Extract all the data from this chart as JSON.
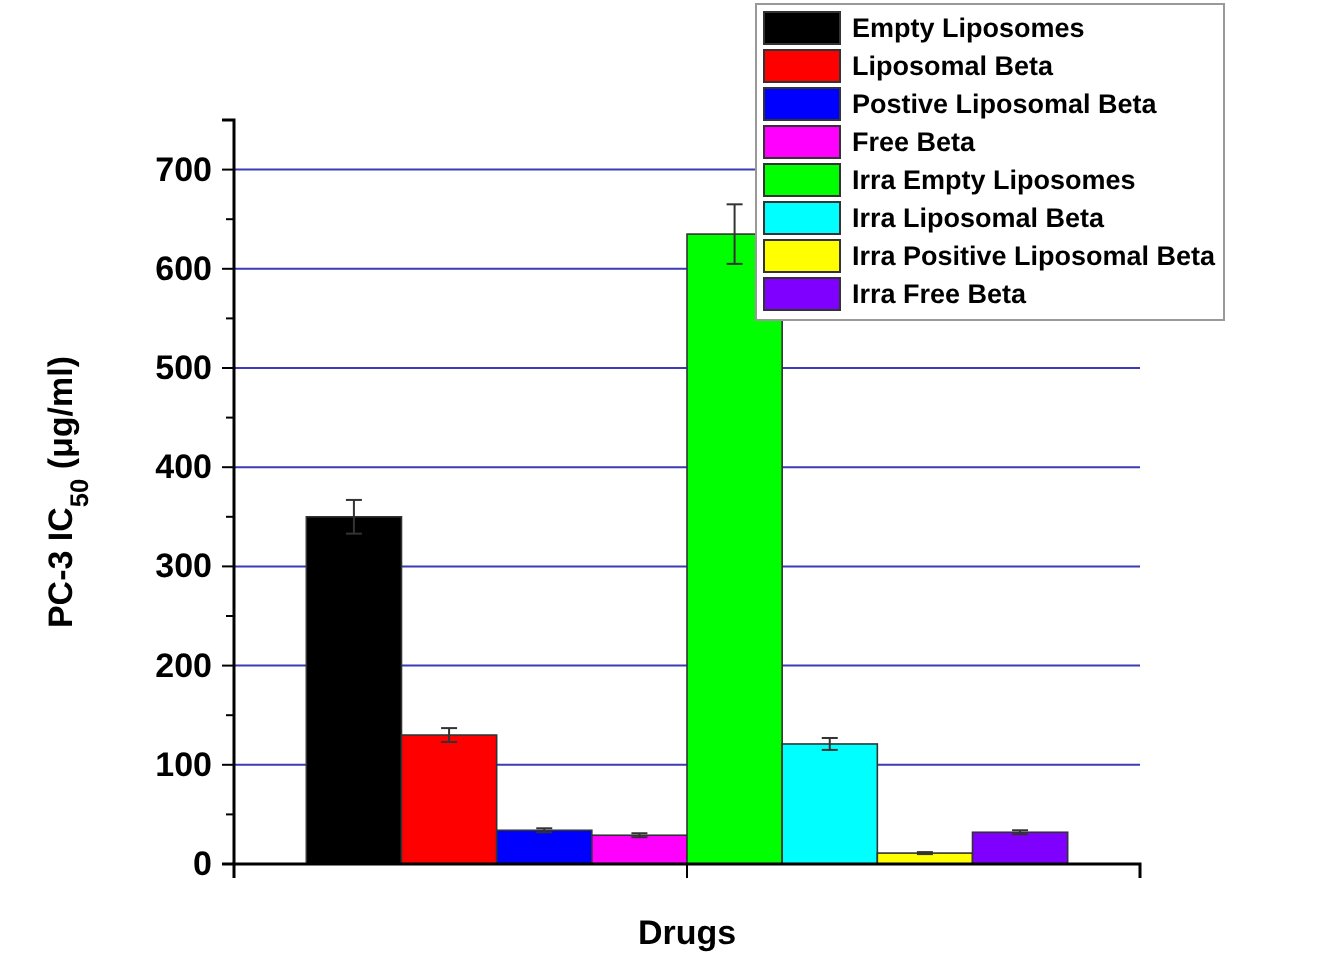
{
  "chart_data": {
    "type": "bar",
    "xlabel": "Drugs",
    "ylabel": "PC-3 IC$_{50}$ (μg/ml)",
    "categories": [
      null
    ],
    "series": [
      {
        "name": "Empty Liposomes",
        "color": "#000000",
        "values": [
          350
        ],
        "errors": [
          17
        ]
      },
      {
        "name": "Liposomal Beta",
        "color": "#ff0000",
        "values": [
          130
        ],
        "errors": [
          7
        ]
      },
      {
        "name": "Postive Liposomal Beta",
        "color": "#0000ff",
        "values": [
          34
        ],
        "errors": [
          2
        ]
      },
      {
        "name": "Free Beta",
        "color": "#ff00ff",
        "values": [
          29
        ],
        "errors": [
          2
        ]
      },
      {
        "name": "Irra Empty Liposomes",
        "color": "#00ff00",
        "values": [
          635
        ],
        "errors": [
          30
        ]
      },
      {
        "name": "Irra Liposomal Beta",
        "color": "#00ffff",
        "values": [
          121
        ],
        "errors": [
          6
        ]
      },
      {
        "name": "Irra Positive Liposomal Beta",
        "color": "#ffff00",
        "values": [
          11
        ],
        "errors": [
          1
        ]
      },
      {
        "name": "Irra Free Beta",
        "color": "#8000ff",
        "values": [
          32
        ],
        "errors": [
          2
        ]
      }
    ],
    "ylim": [
      0,
      750
    ],
    "yticks": [
      0,
      {
        "value": 50,
        "label": null
      },
      100,
      {
        "value": 150,
        "label": null
      },
      200,
      {
        "value": 250,
        "label": null
      },
      300,
      {
        "value": 350,
        "label": null
      },
      400,
      {
        "value": 450,
        "label": null
      },
      500,
      {
        "value": 550,
        "label": null
      },
      600,
      {
        "value": 650,
        "label": null
      },
      700
    ],
    "grid": "y",
    "legend": "top right"
  }
}
